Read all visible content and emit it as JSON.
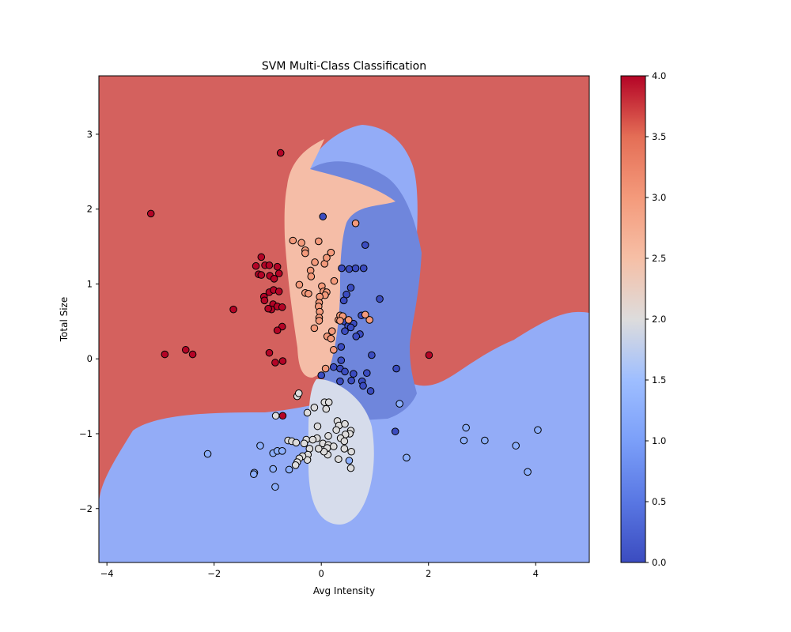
{
  "chart_data": {
    "type": "scatter",
    "title": "SVM Multi-Class Classification",
    "xlabel": "Avg Intensity",
    "ylabel": "Total Size",
    "xlim": [
      -4.15,
      5.0
    ],
    "ylim": [
      -2.72,
      3.78
    ],
    "xticks": [
      -4,
      -2,
      0,
      2,
      4
    ],
    "yticks": [
      -2,
      -1,
      0,
      1,
      2,
      3
    ],
    "xtick_labels": [
      "−4",
      "−2",
      "0",
      "2",
      "4"
    ],
    "ytick_labels": [
      "−2",
      "−1",
      "0",
      "1",
      "2",
      "3"
    ],
    "grid": false,
    "legend": "none",
    "colormap": "coolwarm",
    "colorbar": {
      "range": [
        0.0,
        4.0
      ],
      "ticks": [
        0.0,
        0.5,
        1.0,
        1.5,
        2.0,
        2.5,
        3.0,
        3.5,
        4.0
      ],
      "tick_labels": [
        "0.0",
        "0.5",
        "1.0",
        "1.5",
        "2.0",
        "2.5",
        "3.0",
        "3.5",
        "4.0"
      ]
    },
    "class_colors": [
      "#3b4cc0",
      "#8db0fe",
      "#dddcdc",
      "#f49a7b",
      "#b40426"
    ],
    "region_colors": {
      "class_0": "#6f86dc",
      "class_1": "#93acf7",
      "class_2": "#d6dceb",
      "class_3": "#f5bda7",
      "class_4": "#d4615e"
    },
    "series": [
      {
        "class": 0,
        "points": [
          [
            0.03,
            1.9
          ],
          [
            0.82,
            1.52
          ],
          [
            0.38,
            1.21
          ],
          [
            0.52,
            1.2
          ],
          [
            0.64,
            1.21
          ],
          [
            0.79,
            1.21
          ],
          [
            1.09,
            0.8
          ],
          [
            0.42,
            0.78
          ],
          [
            0.47,
            0.86
          ],
          [
            0.55,
            0.95
          ],
          [
            0.75,
            0.58
          ],
          [
            0.43,
            0.5
          ],
          [
            0.6,
            0.47
          ],
          [
            0.5,
            0.44
          ],
          [
            0.55,
            0.42
          ],
          [
            0.44,
            0.37
          ],
          [
            0.72,
            0.33
          ],
          [
            0.65,
            0.3
          ],
          [
            0.37,
            0.16
          ],
          [
            0.94,
            0.05
          ],
          [
            0.37,
            -0.02
          ],
          [
            0.23,
            -0.11
          ],
          [
            0.35,
            -0.13
          ],
          [
            0.44,
            -0.17
          ],
          [
            0.6,
            -0.2
          ],
          [
            0.85,
            -0.19
          ],
          [
            1.4,
            -0.13
          ],
          [
            0.0,
            -0.22
          ],
          [
            0.35,
            -0.3
          ],
          [
            0.56,
            -0.29
          ],
          [
            0.76,
            -0.3
          ],
          [
            0.78,
            -0.36
          ],
          [
            0.92,
            -0.43
          ],
          [
            1.38,
            -0.97
          ]
        ]
      },
      {
        "class": 1,
        "points": [
          [
            -2.12,
            -1.27
          ],
          [
            -1.14,
            -1.16
          ],
          [
            -1.25,
            -1.52
          ],
          [
            -1.26,
            -1.54
          ],
          [
            -0.9,
            -1.26
          ],
          [
            -0.82,
            -1.23
          ],
          [
            -0.73,
            -1.23
          ],
          [
            -0.9,
            -1.47
          ],
          [
            -0.86,
            -1.71
          ],
          [
            -0.6,
            -1.48
          ],
          [
            1.46,
            -0.6
          ],
          [
            1.59,
            -1.32
          ],
          [
            2.66,
            -1.09
          ],
          [
            2.7,
            -0.92
          ],
          [
            3.05,
            -1.09
          ],
          [
            3.63,
            -1.16
          ],
          [
            3.85,
            -1.51
          ],
          [
            4.04,
            -0.95
          ],
          [
            0.52,
            -1.36
          ]
        ]
      },
      {
        "class": 2,
        "points": [
          [
            -0.85,
            -0.76
          ],
          [
            -0.45,
            -0.5
          ],
          [
            -0.42,
            -0.46
          ],
          [
            -0.13,
            -0.65
          ],
          [
            -0.26,
            -0.72
          ],
          [
            0.06,
            -0.58
          ],
          [
            0.09,
            -0.67
          ],
          [
            0.14,
            -0.58
          ],
          [
            0.3,
            -0.83
          ],
          [
            0.33,
            -0.89
          ],
          [
            0.44,
            -0.87
          ],
          [
            0.55,
            -0.96
          ],
          [
            0.53,
            -1.0
          ],
          [
            0.45,
            -1.01
          ],
          [
            0.36,
            -1.06
          ],
          [
            0.43,
            -1.1
          ],
          [
            0.28,
            -0.95
          ],
          [
            -0.07,
            -0.9
          ],
          [
            -0.28,
            -1.08
          ],
          [
            -0.32,
            -1.13
          ],
          [
            -0.08,
            -1.06
          ],
          [
            -0.16,
            -1.08
          ],
          [
            0.03,
            -1.13
          ],
          [
            0.13,
            -1.03
          ],
          [
            0.13,
            -1.15
          ],
          [
            0.11,
            -1.19
          ],
          [
            0.23,
            -1.17
          ],
          [
            0.43,
            -1.2
          ],
          [
            0.56,
            -1.24
          ],
          [
            0.55,
            -1.46
          ],
          [
            0.32,
            -1.34
          ],
          [
            0.12,
            -1.28
          ],
          [
            0.05,
            -1.24
          ],
          [
            -0.05,
            -1.2
          ],
          [
            -0.22,
            -1.2
          ],
          [
            -0.25,
            -1.28
          ],
          [
            -0.26,
            -1.35
          ],
          [
            -0.35,
            -1.3
          ],
          [
            -0.41,
            -1.33
          ],
          [
            -0.45,
            -1.38
          ],
          [
            -0.48,
            -1.42
          ],
          [
            -0.62,
            -1.09
          ],
          [
            -0.55,
            -1.1
          ],
          [
            -0.47,
            -1.12
          ]
        ]
      },
      {
        "class": 3,
        "points": [
          [
            -0.53,
            1.58
          ],
          [
            -0.37,
            1.55
          ],
          [
            -0.3,
            1.45
          ],
          [
            -0.3,
            1.41
          ],
          [
            -0.05,
            1.57
          ],
          [
            -0.12,
            1.29
          ],
          [
            0.06,
            1.27
          ],
          [
            0.1,
            1.35
          ],
          [
            0.18,
            1.42
          ],
          [
            -0.2,
            1.18
          ],
          [
            -0.19,
            1.1
          ],
          [
            0.24,
            1.04
          ],
          [
            -0.41,
            0.99
          ],
          [
            -0.3,
            0.88
          ],
          [
            -0.24,
            0.87
          ],
          [
            0.01,
            0.97
          ],
          [
            0.04,
            0.9
          ],
          [
            0.1,
            0.89
          ],
          [
            0.07,
            0.85
          ],
          [
            -0.03,
            0.83
          ],
          [
            -0.04,
            0.75
          ],
          [
            -0.05,
            0.7
          ],
          [
            -0.03,
            0.63
          ],
          [
            -0.04,
            0.55
          ],
          [
            -0.04,
            0.51
          ],
          [
            -0.13,
            0.41
          ],
          [
            0.11,
            0.3
          ],
          [
            0.18,
            0.27
          ],
          [
            0.2,
            0.37
          ],
          [
            0.23,
            0.12
          ],
          [
            0.32,
            0.52
          ],
          [
            0.35,
            0.58
          ],
          [
            0.4,
            0.57
          ],
          [
            0.35,
            0.51
          ],
          [
            0.51,
            0.52
          ],
          [
            0.64,
            1.81
          ],
          [
            0.82,
            0.59
          ],
          [
            0.9,
            0.52
          ],
          [
            0.08,
            -0.13
          ]
        ]
      },
      {
        "class": 4,
        "points": [
          [
            -0.76,
            2.75
          ],
          [
            -3.18,
            1.94
          ],
          [
            -1.22,
            1.24
          ],
          [
            -1.17,
            1.13
          ],
          [
            -1.12,
            1.12
          ],
          [
            -1.12,
            1.36
          ],
          [
            -1.05,
            1.25
          ],
          [
            -0.97,
            1.25
          ],
          [
            -0.82,
            1.23
          ],
          [
            -0.96,
            1.11
          ],
          [
            -0.88,
            1.07
          ],
          [
            -0.79,
            1.14
          ],
          [
            -1.07,
            0.83
          ],
          [
            -1.06,
            0.78
          ],
          [
            -0.97,
            0.89
          ],
          [
            -0.89,
            0.92
          ],
          [
            -0.79,
            0.9
          ],
          [
            -0.9,
            0.73
          ],
          [
            -0.82,
            0.7
          ],
          [
            -0.73,
            0.69
          ],
          [
            -0.93,
            0.66
          ],
          [
            -0.99,
            0.67
          ],
          [
            -1.64,
            0.66
          ],
          [
            -0.73,
            0.43
          ],
          [
            -0.82,
            0.38
          ],
          [
            -2.53,
            0.12
          ],
          [
            -2.92,
            0.06
          ],
          [
            -2.4,
            0.06
          ],
          [
            -0.97,
            0.08
          ],
          [
            -0.86,
            -0.05
          ],
          [
            -0.72,
            -0.03
          ],
          [
            -0.72,
            -0.76
          ],
          [
            2.01,
            0.05
          ]
        ]
      }
    ]
  }
}
